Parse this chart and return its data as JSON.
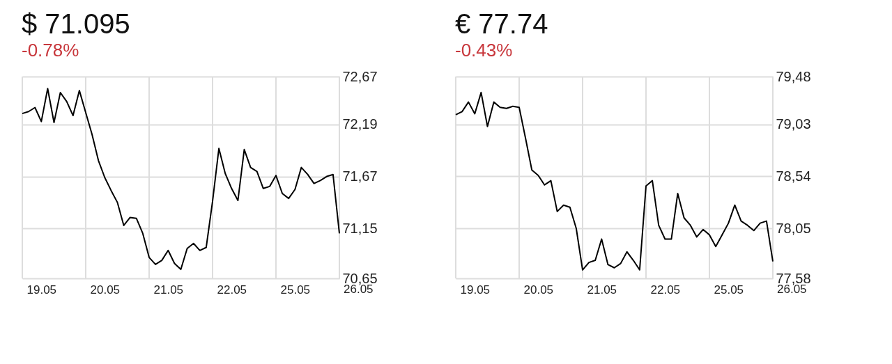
{
  "chart_data": [
    {
      "type": "line",
      "title": "$ 71.095",
      "subtitle": "-0.78%",
      "grid": true,
      "categories": [
        null,
        null,
        null,
        "19.05",
        null,
        null,
        null,
        null,
        null,
        null,
        null,
        null,
        null,
        "20.05",
        null,
        null,
        null,
        null,
        null,
        null,
        null,
        null,
        null,
        "21.05",
        null,
        null,
        null,
        null,
        null,
        null,
        null,
        null,
        null,
        "22.05",
        null,
        null,
        null,
        null,
        null,
        null,
        null,
        null,
        null,
        "25.05",
        null,
        null,
        null,
        null,
        null,
        null,
        null,
        null,
        null,
        "26.05"
      ],
      "series": [
        {
          "color": "#000000",
          "values": [
            72.3,
            72.32,
            72.36,
            72.22,
            72.55,
            72.21,
            72.51,
            72.42,
            72.28,
            72.53,
            72.31,
            72.09,
            71.83,
            71.66,
            71.53,
            71.41,
            71.18,
            71.26,
            71.25,
            71.1,
            70.86,
            70.79,
            70.83,
            70.93,
            70.8,
            70.74,
            70.95,
            71.0,
            70.93,
            70.96,
            71.42,
            71.95,
            71.7,
            71.55,
            71.43,
            71.94,
            71.76,
            71.72,
            71.55,
            71.57,
            71.68,
            71.5,
            71.45,
            71.54,
            71.76,
            71.69,
            71.6,
            71.63,
            71.67,
            71.69,
            71.1,
            null,
            null,
            null
          ]
        }
      ],
      "ylim": [
        70.65,
        72.67
      ],
      "yticks": [
        {
          "value": 70.65,
          "label": "70,65"
        },
        {
          "value": 71.15,
          "label": "71,15"
        },
        {
          "value": 71.67,
          "label": "71,67"
        },
        {
          "value": 72.19,
          "label": "72,19"
        },
        {
          "value": 72.67,
          "label": "72,67"
        }
      ]
    },
    {
      "type": "line",
      "title": "€ 77.74",
      "subtitle": "-0.43%",
      "grid": true,
      "categories": [
        null,
        null,
        null,
        "19.05",
        null,
        null,
        null,
        null,
        null,
        null,
        null,
        null,
        null,
        "20.05",
        null,
        null,
        null,
        null,
        null,
        null,
        null,
        null,
        null,
        "21.05",
        null,
        null,
        null,
        null,
        null,
        null,
        null,
        null,
        null,
        "22.05",
        null,
        null,
        null,
        null,
        null,
        null,
        null,
        null,
        null,
        "25.05",
        null,
        null,
        null,
        null,
        null,
        null,
        null,
        null,
        null,
        "26.05"
      ],
      "series": [
        {
          "color": "#000000",
          "values": [
            79.12,
            79.15,
            79.24,
            79.13,
            79.33,
            79.01,
            79.24,
            79.19,
            79.18,
            79.2,
            79.19,
            78.9,
            78.6,
            78.55,
            78.46,
            78.5,
            78.21,
            78.27,
            78.25,
            78.05,
            77.66,
            77.73,
            77.75,
            77.95,
            77.71,
            77.68,
            77.72,
            77.83,
            77.75,
            77.66,
            78.45,
            78.5,
            78.08,
            77.95,
            77.95,
            78.38,
            78.15,
            78.08,
            77.97,
            78.04,
            77.99,
            77.88,
            77.99,
            78.1,
            78.27,
            78.12,
            78.08,
            78.03,
            78.1,
            78.12,
            77.74,
            null,
            null,
            null
          ]
        }
      ],
      "ylim": [
        77.58,
        79.48
      ],
      "yticks": [
        {
          "value": 77.58,
          "label": "77,58"
        },
        {
          "value": 78.05,
          "label": "78,05"
        },
        {
          "value": 78.54,
          "label": "78,54"
        },
        {
          "value": 79.03,
          "label": "79,03"
        },
        {
          "value": 79.48,
          "label": "79,48"
        }
      ]
    }
  ]
}
